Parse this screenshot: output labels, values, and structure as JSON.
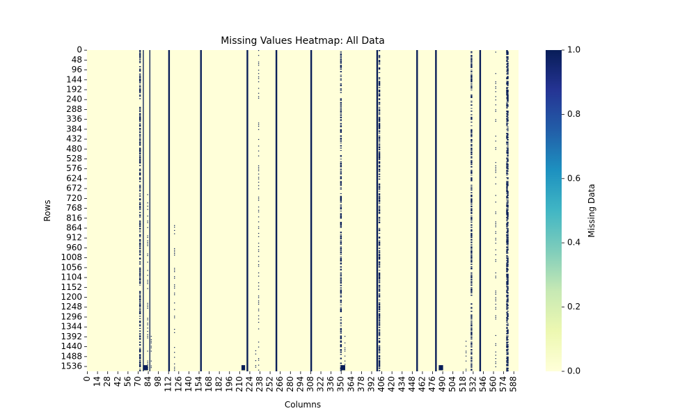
{
  "chart_data": {
    "type": "heatmap",
    "title": "Missing Values Heatmap: All Data",
    "xlabel": "Columns",
    "ylabel": "Rows",
    "rows": 1560,
    "columns": 595,
    "x_ticks": [
      "0",
      "14",
      "28",
      "42",
      "56",
      "70",
      "84",
      "98",
      "112",
      "126",
      "140",
      "154",
      "168",
      "182",
      "196",
      "210",
      "224",
      "238",
      "252",
      "266",
      "280",
      "294",
      "308",
      "322",
      "336",
      "350",
      "364",
      "378",
      "392",
      "406",
      "420",
      "434",
      "448",
      "462",
      "476",
      "490",
      "504",
      "518",
      "532",
      "546",
      "560",
      "574",
      "588"
    ],
    "x_tick_step": 14,
    "y_ticks": [
      "0",
      "48",
      "96",
      "144",
      "192",
      "240",
      "288",
      "336",
      "384",
      "432",
      "480",
      "528",
      "576",
      "624",
      "672",
      "720",
      "768",
      "816",
      "864",
      "912",
      "960",
      "1008",
      "1056",
      "1104",
      "1152",
      "1200",
      "1248",
      "1296",
      "1344",
      "1392",
      "1440",
      "1488",
      "1536"
    ],
    "y_tick_step": 48,
    "colorbar": {
      "label": "Missing Data",
      "range": [
        0.0,
        1.0
      ],
      "ticks": [
        "0.0",
        "0.2",
        "0.4",
        "0.6",
        "0.8",
        "1.0"
      ],
      "colormap": "YlGnBu",
      "stops": [
        "#ffffd9",
        "#edf8b1",
        "#c7e9b4",
        "#7fcdbb",
        "#41b6c4",
        "#1d91c0",
        "#225ea8",
        "#253494",
        "#081d58"
      ]
    },
    "background_value": 0.0,
    "fully_missing_columns": [
      77,
      86,
      112,
      113,
      156,
      157,
      220,
      221,
      260,
      261,
      308,
      309,
      399,
      400,
      454,
      455,
      480,
      481,
      541,
      542
    ],
    "mostly_missing_columns": [
      72,
      349,
      402,
      529,
      578,
      579
    ],
    "sparse_missing_columns": [
      {
        "col": 83,
        "row_start": 700,
        "row_end": 1560
      },
      {
        "col": 88,
        "row_start": 1380,
        "row_end": 1560
      },
      {
        "col": 120,
        "row_start": 850,
        "row_end": 1560
      },
      {
        "col": 232,
        "row_start": 1450,
        "row_end": 1560
      },
      {
        "col": 236,
        "row_start": 0,
        "row_end": 1560
      },
      {
        "col": 355,
        "row_start": 1380,
        "row_end": 1560
      },
      {
        "col": 522,
        "row_start": 1380,
        "row_end": 1560
      },
      {
        "col": 563,
        "row_start": 0,
        "row_end": 1560
      }
    ],
    "missing_blocks": [
      {
        "col_start": 78,
        "col_end": 84,
        "row_start": 1530,
        "row_end": 1555
      },
      {
        "col_start": 213,
        "col_end": 218,
        "row_start": 1530,
        "row_end": 1555
      },
      {
        "col_start": 350,
        "col_end": 356,
        "row_start": 1530,
        "row_end": 1555
      },
      {
        "col_start": 485,
        "col_end": 491,
        "row_start": 1530,
        "row_end": 1555
      }
    ]
  }
}
